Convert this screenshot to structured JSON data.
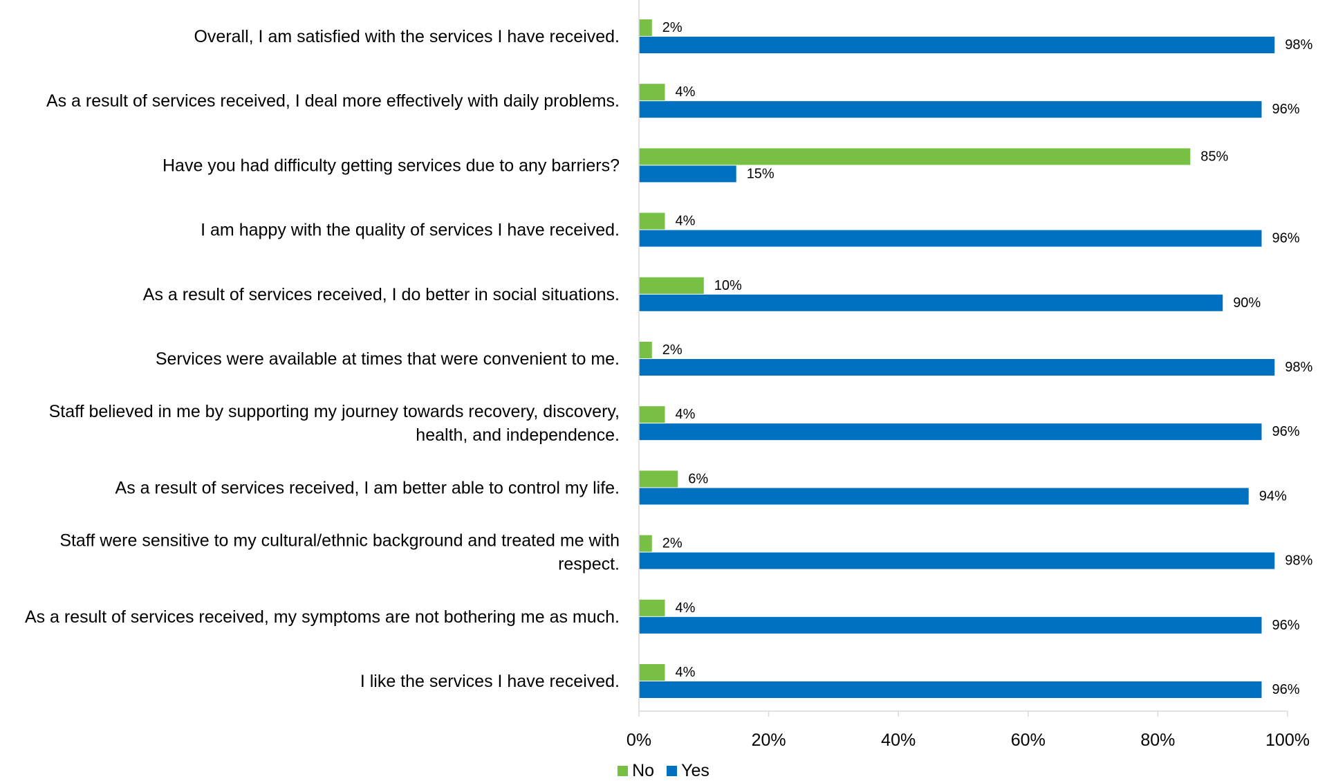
{
  "chart_data": {
    "type": "bar",
    "orientation": "horizontal",
    "categories": [
      [
        "Overall, I am satisfied with the services I have received."
      ],
      [
        "As a result of services received, I deal more effectively with daily problems."
      ],
      [
        "Have you had difficulty getting services due to any barriers?"
      ],
      [
        "I am happy with the quality of services I have received."
      ],
      [
        "As a result of services received, I do better in social situations."
      ],
      [
        "Services were available at times that were convenient to me."
      ],
      [
        "Staff believed in me by supporting my journey towards recovery, discovery,",
        "health, and independence."
      ],
      [
        "As a result of services received, I am better able to control my life."
      ],
      [
        "Staff were sensitive to my cultural/ethnic background and treated me with",
        "respect."
      ],
      [
        "As a result of services received, my symptoms are not bothering me as much."
      ],
      [
        "I like the services I have received."
      ]
    ],
    "series": [
      {
        "name": "No",
        "color": "#77C043",
        "values": [
          2,
          4,
          85,
          4,
          10,
          2,
          4,
          6,
          2,
          4,
          4
        ]
      },
      {
        "name": "Yes",
        "color": "#0070C0",
        "values": [
          98,
          96,
          15,
          96,
          90,
          98,
          96,
          94,
          98,
          96,
          96
        ]
      }
    ],
    "xlim": [
      0,
      100
    ],
    "xticks": [
      "0%",
      "20%",
      "40%",
      "60%",
      "80%",
      "100%"
    ],
    "value_suffix": "%",
    "grid": false,
    "legend_position": "bottom"
  }
}
